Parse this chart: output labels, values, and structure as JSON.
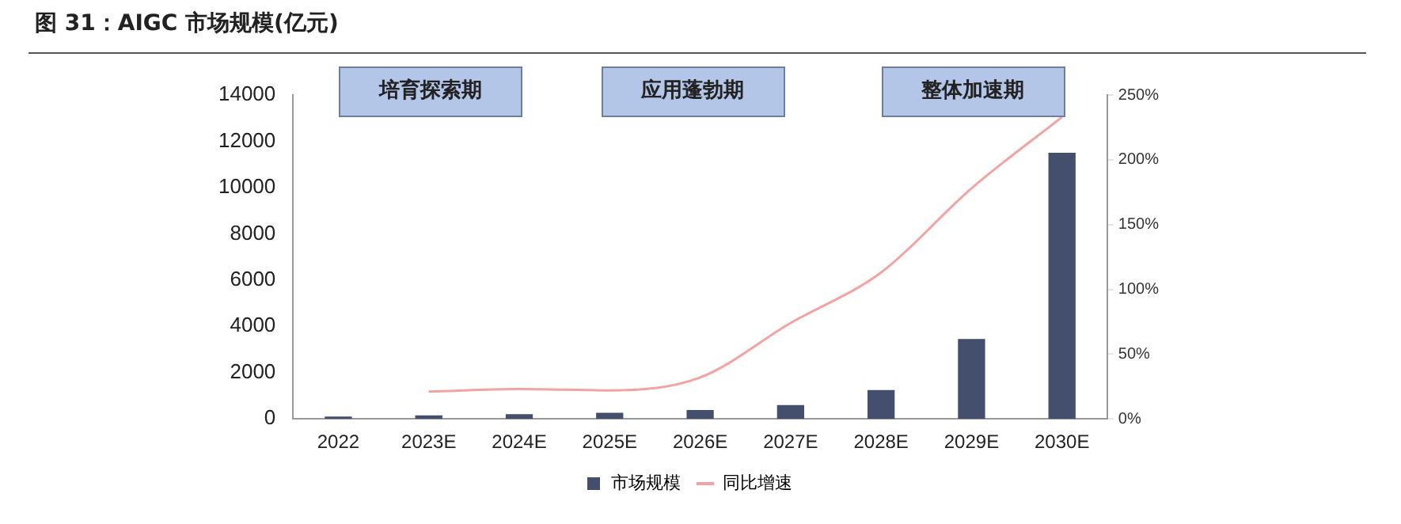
{
  "chart_data": {
    "type": "bar",
    "title": "图 31：AIGC 市场规模(亿元)",
    "categories": [
      "2022",
      "2023E",
      "2024E",
      "2025E",
      "2026E",
      "2027E",
      "2028E",
      "2029E",
      "2030E"
    ],
    "series": [
      {
        "name": "市场规模",
        "color": "#444f6d",
        "values": [
          100,
          150,
          200,
          260,
          380,
          600,
          1250,
          3450,
          11500
        ]
      },
      {
        "name": "同比增速",
        "type": "line",
        "axis": "y2",
        "color": "#f4a3a3",
        "marker": "none",
        "values": [
          null,
          21,
          23,
          22,
          32,
          74,
          113,
          178,
          233
        ]
      }
    ],
    "ylim": [
      0,
      14000
    ],
    "yticks": [
      0,
      2000,
      4000,
      6000,
      8000,
      10000,
      12000,
      14000
    ],
    "y2lim": [
      0,
      250
    ],
    "y2ticks": [
      {
        "value": 0,
        "label": "0%"
      },
      {
        "value": 50,
        "label": "50%"
      },
      {
        "value": 100,
        "label": "100%"
      },
      {
        "value": 150,
        "label": "150%"
      },
      {
        "value": 200,
        "label": "200%"
      },
      {
        "value": 250,
        "label": "250%"
      }
    ],
    "annotations": [
      "培育探索期",
      "应用蓬勃期",
      "整体加速期"
    ],
    "grid": false,
    "legend": "bottom"
  }
}
